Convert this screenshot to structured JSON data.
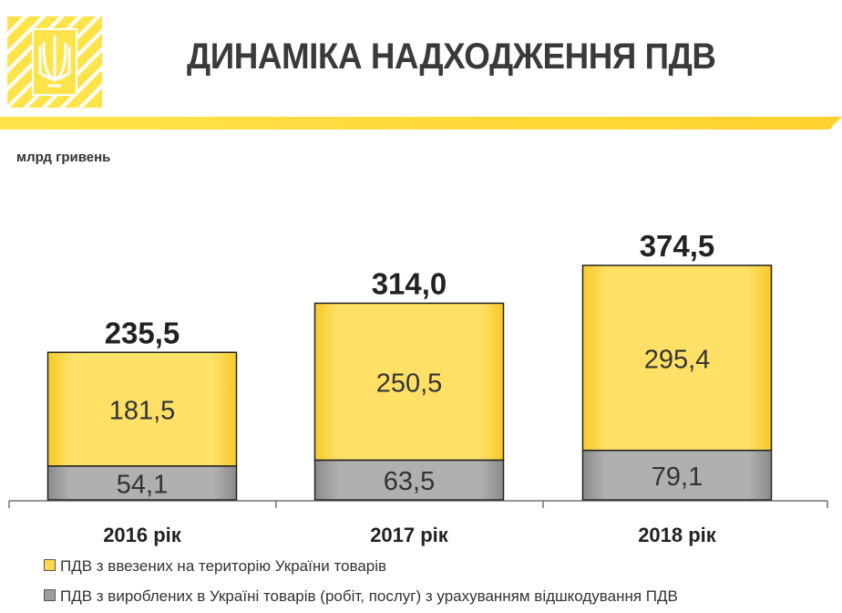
{
  "header": {
    "title": "ДИНАМІКА НАДХОДЖЕННЯ ПДВ",
    "logo_icon": "trident-emblem-icon",
    "accent_color": "#FFE34A",
    "title_color": "#3a3a3a"
  },
  "chart_data": {
    "type": "bar",
    "stacked": true,
    "unit_label": "млрд гривень",
    "categories": [
      "2016 рік",
      "2017 рік",
      "2018 рік"
    ],
    "series": [
      {
        "name": "ПДВ  з вироблених в Україні товарів (робіт, послуг) з урахуванням відшкодування ПДВ",
        "values": [
          54.1,
          63.5,
          79.1
        ],
        "labels": [
          "54,1",
          "63,5",
          "79,1"
        ],
        "color": "#9e9e9e"
      },
      {
        "name": "ПДВ з ввезених на територію України товарів",
        "values": [
          181.5,
          250.5,
          295.4
        ],
        "labels": [
          "181,5",
          "250,5",
          "295,4"
        ],
        "color": "#FFD84D"
      }
    ],
    "totals": [
      235.5,
      314.0,
      374.5
    ],
    "total_labels": [
      "235,5",
      "314,0",
      "374,5"
    ],
    "legend": [
      "ПДВ з ввезених на територію України товарів",
      "ПДВ  з вироблених в Україні товарів (робіт, послуг) з урахуванням відшкодування ПДВ"
    ],
    "legend_position": "bottom",
    "grid": false
  }
}
